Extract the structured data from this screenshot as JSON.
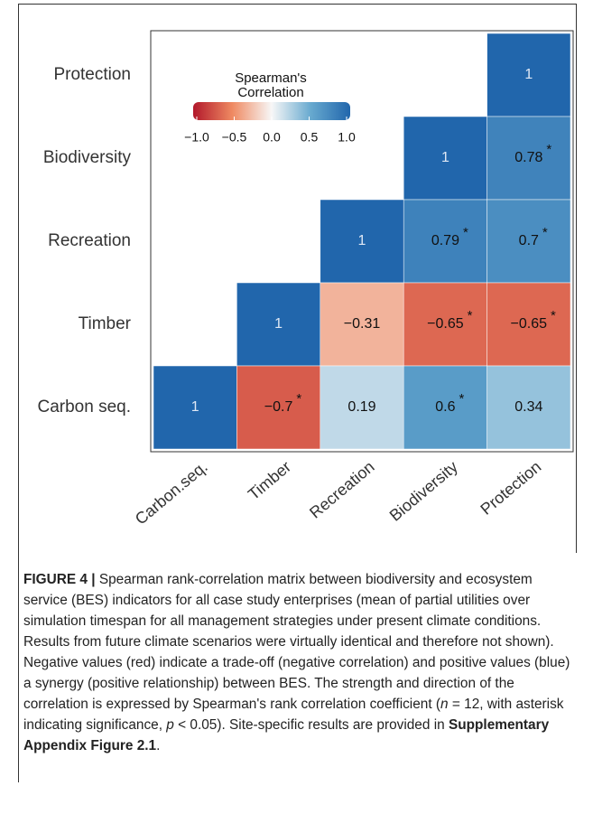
{
  "chart_data": {
    "type": "heatmap",
    "x_categories": [
      "Carbon.seq.",
      "Timber",
      "Recreation",
      "Biodiversity",
      "Protection"
    ],
    "y_categories": [
      "Protection",
      "Biodiversity",
      "Recreation",
      "Timber",
      "Carbon seq."
    ],
    "values": [
      [
        null,
        null,
        null,
        null,
        1
      ],
      [
        null,
        null,
        null,
        1,
        0.78
      ],
      [
        null,
        null,
        1,
        0.79,
        0.7
      ],
      [
        null,
        1,
        -0.31,
        -0.65,
        -0.65
      ],
      [
        1,
        -0.7,
        0.19,
        0.6,
        0.34
      ]
    ],
    "value_labels": [
      [
        null,
        null,
        null,
        null,
        "1"
      ],
      [
        null,
        null,
        null,
        "1",
        "0.78"
      ],
      [
        null,
        null,
        "1",
        "0.79",
        "0.7"
      ],
      [
        null,
        "1",
        "−0.31",
        "−0.65",
        "−0.65"
      ],
      [
        "1",
        "−0.7",
        "0.19",
        "0.6",
        "0.34"
      ]
    ],
    "significance": [
      [
        null,
        null,
        null,
        null,
        null
      ],
      [
        null,
        null,
        null,
        null,
        "*"
      ],
      [
        null,
        null,
        null,
        "*",
        "*"
      ],
      [
        null,
        null,
        null,
        "*",
        "*"
      ],
      [
        null,
        "*",
        null,
        "*",
        null
      ]
    ],
    "legend_title": [
      "Spearman's",
      "Correlation"
    ],
    "colorbar_lim": [
      -1,
      1
    ],
    "colorbar_ticks": [
      {
        "value": -1,
        "label": "−1.0"
      },
      {
        "value": -0.5,
        "label": "−0.5"
      },
      {
        "value": 0,
        "label": "0.0"
      },
      {
        "value": 0.5,
        "label": "0.5"
      },
      {
        "value": 1,
        "label": "1.0"
      }
    ],
    "colors": [
      "#b2182b",
      "#ef8a62",
      "#f7f7f7",
      "#67a9cf",
      "#2166ac"
    ]
  },
  "caption": {
    "label": "FIGURE 4 |",
    "text_1": " Spearman rank-correlation matrix between biodiversity and ecosystem service (BES) indicators for all case study enterprises (mean of partial utilities over simulation timespan for all management strategies under present climate conditions. Results from future climate scenarios were virtually identical and therefore not shown). Negative values (red) indicate a trade-off (negative correlation) and positive values (blue) a synergy (positive relationship) between BES. The strength and direction of the correlation is expressed by Spearman's rank correlation coefficient (",
    "n": "n",
    "text_2": " = 12, with asterisk indicating significance, ",
    "p": "p",
    "text_3": " < 0.05). Site-specific results are provided in ",
    "ref": "Supplementary Appendix Figure 2.1",
    "text_4": "."
  }
}
